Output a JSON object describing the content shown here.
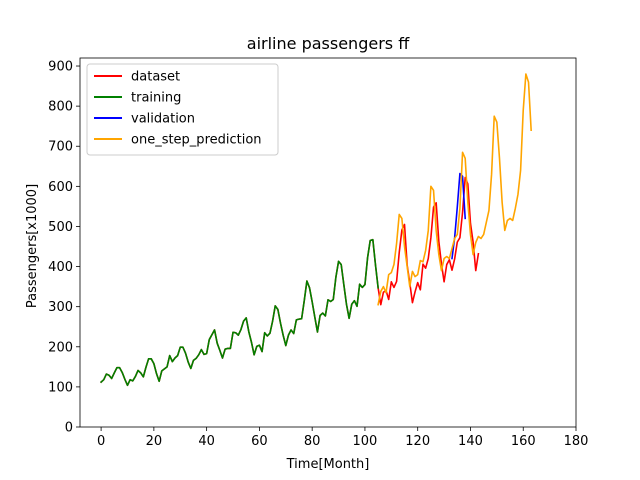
{
  "chart_data": {
    "type": "line",
    "title": "airline passengers ff",
    "xlabel": "Time[Month]",
    "ylabel": "Passengers[x1000]",
    "xlim": [
      -8,
      180
    ],
    "ylim": [
      0,
      920
    ],
    "xticks": [
      0,
      20,
      40,
      60,
      80,
      100,
      120,
      140,
      160,
      180
    ],
    "yticks": [
      0,
      100,
      200,
      300,
      400,
      500,
      600,
      700,
      800,
      900
    ],
    "grid": false,
    "legend_position": "top-left",
    "series": [
      {
        "name": "dataset",
        "color": "#ff0000",
        "x_start": 0,
        "values": [
          112,
          118,
          132,
          129,
          121,
          135,
          148,
          148,
          136,
          119,
          104,
          118,
          115,
          126,
          141,
          135,
          125,
          149,
          170,
          170,
          158,
          133,
          114,
          140,
          145,
          150,
          178,
          163,
          172,
          178,
          199,
          199,
          184,
          162,
          146,
          166,
          171,
          180,
          193,
          181,
          183,
          218,
          230,
          242,
          209,
          191,
          172,
          194,
          196,
          196,
          236,
          235,
          229,
          243,
          264,
          272,
          237,
          211,
          180,
          201,
          204,
          188,
          235,
          227,
          234,
          264,
          302,
          293,
          259,
          229,
          203,
          229,
          242,
          233,
          267,
          269,
          270,
          315,
          364,
          347,
          312,
          274,
          237,
          278,
          284,
          277,
          317,
          313,
          318,
          374,
          413,
          405,
          355,
          306,
          271,
          306,
          315,
          301,
          356,
          348,
          355,
          422,
          465,
          467,
          404,
          347,
          305,
          336,
          340,
          318,
          362,
          348,
          363,
          435,
          491,
          505,
          404,
          359,
          310,
          337,
          360,
          342,
          406,
          396,
          420,
          472,
          548,
          559,
          463,
          407,
          362,
          405,
          417,
          391,
          419,
          461,
          472,
          535,
          622,
          606,
          508,
          461,
          390,
          432
        ]
      },
      {
        "name": "training",
        "color": "#008000",
        "x_start": 0,
        "values": [
          112,
          118,
          132,
          129,
          121,
          135,
          148,
          148,
          136,
          119,
          104,
          118,
          115,
          126,
          141,
          135,
          125,
          149,
          170,
          170,
          158,
          133,
          114,
          140,
          145,
          150,
          178,
          163,
          172,
          178,
          199,
          199,
          184,
          162,
          146,
          166,
          171,
          180,
          193,
          181,
          183,
          218,
          230,
          242,
          209,
          191,
          172,
          194,
          196,
          196,
          236,
          235,
          229,
          243,
          264,
          272,
          237,
          211,
          180,
          201,
          204,
          188,
          235,
          227,
          234,
          264,
          302,
          293,
          259,
          229,
          203,
          229,
          242,
          233,
          267,
          269,
          270,
          315,
          364,
          347,
          312,
          274,
          237,
          278,
          284,
          277,
          317,
          313,
          318,
          374,
          413,
          405,
          355,
          306,
          271,
          306,
          315,
          301,
          356,
          348,
          355,
          422,
          465,
          467,
          404,
          347
        ]
      },
      {
        "name": "validation",
        "color": "#0000ff",
        "x_start": 133,
        "values": [
          420,
          472,
          548,
          632,
          625,
          520
        ]
      },
      {
        "name": "one_step_prediction",
        "color": "#ffa500",
        "x_start": 105,
        "values": [
          305,
          338,
          350,
          335,
          380,
          385,
          405,
          458,
          530,
          520,
          450,
          400,
          350,
          388,
          375,
          380,
          415,
          412,
          440,
          490,
          600,
          590,
          490,
          430,
          390,
          420,
          425,
          420,
          445,
          470,
          480,
          545,
          685,
          670,
          560,
          480,
          430,
          460,
          475,
          470,
          480,
          510,
          540,
          630,
          775,
          760,
          670,
          560,
          490,
          515,
          520,
          515,
          545,
          580,
          640,
          790,
          880,
          860,
          740
        ]
      }
    ]
  }
}
